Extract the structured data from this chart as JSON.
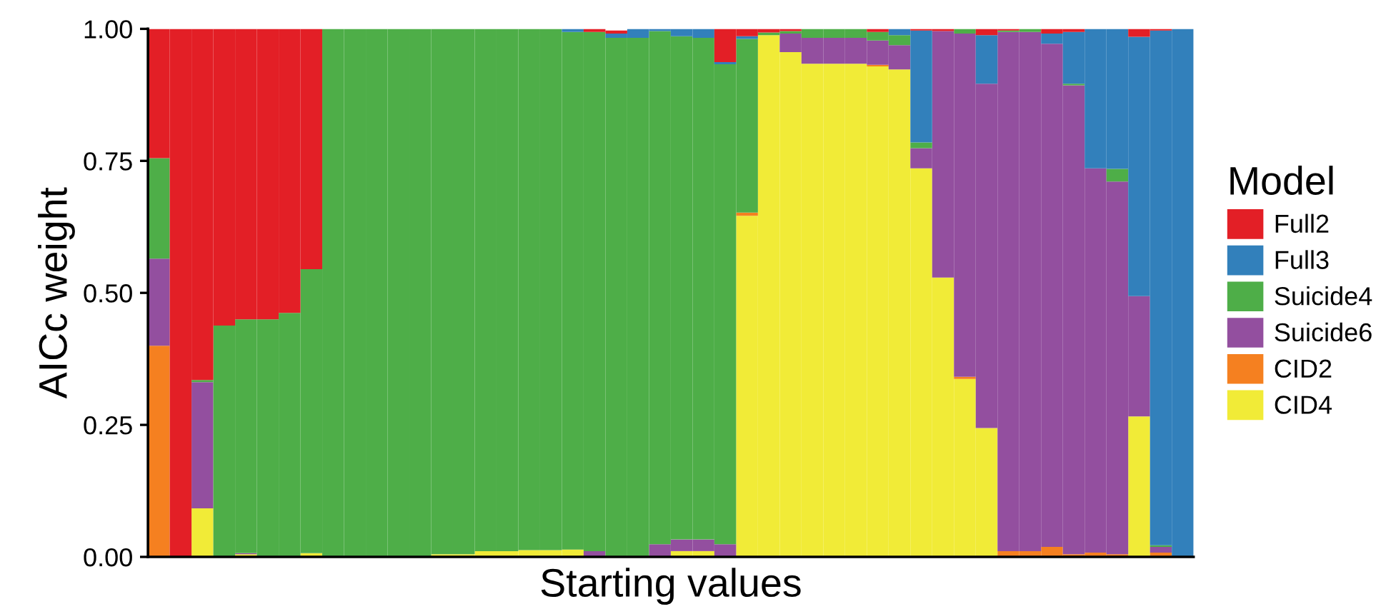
{
  "chart_data": {
    "type": "bar",
    "stacked": true,
    "xlabel": "Starting values",
    "ylabel": "AICc weight",
    "legend_title": "Model",
    "legend": "right",
    "grid": false,
    "categories": [
      null,
      null,
      null,
      null,
      null,
      null,
      null,
      null,
      null,
      null,
      null,
      null,
      null,
      null,
      null,
      null,
      null,
      null,
      null,
      null,
      null,
      null,
      null,
      null,
      null,
      null,
      null,
      null,
      null,
      null,
      null,
      null,
      null,
      null,
      null,
      null,
      null,
      null,
      null,
      null,
      null,
      null,
      null,
      null,
      null,
      null,
      null,
      null
    ],
    "ylim": [
      0,
      1
    ],
    "yticks": [
      {
        "value": 0,
        "label": "0.00"
      },
      {
        "value": 0.25,
        "label": "0.25"
      },
      {
        "value": 0.5,
        "label": "0.50"
      },
      {
        "value": 0.75,
        "label": "0.75"
      },
      {
        "value": 1,
        "label": "1.00"
      }
    ],
    "series": [
      {
        "name": "CID4",
        "color": "#f1eb37",
        "values": [
          0,
          0,
          0.092,
          0,
          0.005,
          0,
          0,
          0.007,
          0,
          0,
          0,
          0,
          0,
          0.005,
          0.005,
          0.011,
          0.011,
          0.013,
          0.013,
          0.014,
          0,
          0,
          0,
          0,
          0.011,
          0.011,
          0,
          0.646,
          0.988,
          0.956,
          0.934,
          0.934,
          0.934,
          0.929,
          0.923,
          0.736,
          0.529,
          0.337,
          0.244,
          0,
          0,
          0,
          0,
          0,
          0,
          0.266,
          0,
          0
        ]
      },
      {
        "name": "CID2",
        "color": "#f58020",
        "values": [
          0.4,
          0,
          0,
          0,
          0,
          0,
          0,
          0,
          0,
          0,
          0,
          0,
          0,
          0,
          0,
          0,
          0,
          0,
          0,
          0,
          0,
          0,
          0,
          0,
          0,
          0,
          0,
          0.006,
          0,
          0,
          0,
          0,
          0,
          0.003,
          0,
          0,
          0,
          0.004,
          0,
          0.011,
          0.011,
          0.019,
          0.005,
          0.008,
          0.005,
          0,
          0.008,
          0
        ]
      },
      {
        "name": "Suicide6",
        "color": "#934f9f",
        "values": [
          0.165,
          0,
          0.239,
          0,
          0.002,
          0,
          0,
          0,
          0,
          0,
          0,
          0,
          0,
          0,
          0,
          0,
          0,
          0,
          0,
          0,
          0.011,
          0,
          0,
          0.024,
          0.022,
          0.022,
          0.024,
          0,
          0,
          0.035,
          0.049,
          0.049,
          0.049,
          0.046,
          0.046,
          0.038,
          0.467,
          0.65,
          0.652,
          0.983,
          0.983,
          0.953,
          0.888,
          0.728,
          0.706,
          0.228,
          0.011,
          0
        ]
      },
      {
        "name": "Suicide4",
        "color": "#4eae48",
        "values": [
          0.19,
          0,
          0.004,
          0.438,
          0.443,
          0.45,
          0.462,
          0.538,
          1,
          1,
          1,
          1,
          1,
          0.995,
          0.995,
          0.989,
          0.989,
          0.987,
          0.987,
          0.98,
          0.983,
          0.983,
          0.983,
          0.972,
          0.953,
          0.95,
          0.909,
          0.329,
          0.005,
          0.005,
          0.017,
          0.017,
          0.017,
          0.016,
          0.019,
          0.011,
          0,
          0.009,
          0,
          0.003,
          0.006,
          0,
          0.003,
          0,
          0.024,
          0,
          0.003,
          0
        ]
      },
      {
        "name": "Full3",
        "color": "#3280bb",
        "values": [
          0,
          0,
          0,
          0,
          0,
          0,
          0,
          0,
          0,
          0,
          0,
          0,
          0,
          0,
          0,
          0,
          0,
          0,
          0,
          0.006,
          0,
          0.008,
          0.017,
          0.004,
          0.014,
          0.017,
          0.004,
          0.005,
          0,
          0,
          0,
          0,
          0,
          0,
          0.012,
          0.212,
          0,
          0,
          0.092,
          0,
          0,
          0.019,
          0.098,
          0.264,
          0.265,
          0.491,
          0.975,
          1
        ]
      },
      {
        "name": "Full2",
        "color": "#e31f26",
        "values": [
          0.245,
          1,
          0.665,
          0.562,
          0.55,
          0.55,
          0.538,
          0.455,
          0,
          0,
          0,
          0,
          0,
          0,
          0,
          0,
          0,
          0,
          0,
          0,
          0.006,
          0.006,
          0,
          0,
          0,
          0,
          0.063,
          0.014,
          0.007,
          0.004,
          0,
          0,
          0,
          0.006,
          0,
          0.003,
          0.004,
          0,
          0.012,
          0.003,
          0,
          0.009,
          0.006,
          0,
          0,
          0.015,
          0.003,
          0
        ]
      }
    ]
  }
}
